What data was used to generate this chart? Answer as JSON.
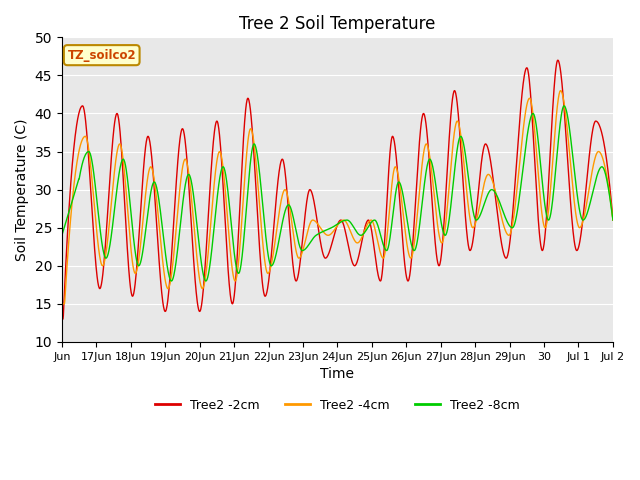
{
  "title": "Tree 2 Soil Temperature",
  "ylabel": "Soil Temperature (C)",
  "xlabel": "Time",
  "ylim": [
    10,
    50
  ],
  "annotation": "TZ_soilco2",
  "bg_color": "#e8e8e8",
  "line_colors": [
    "#dd0000",
    "#ff9900",
    "#00cc00"
  ],
  "line_labels": [
    "Tree2 -2cm",
    "Tree2 -4cm",
    "Tree2 -8cm"
  ],
  "xtick_labels": [
    "Jun",
    "17Jun",
    "18Jun",
    "19Jun",
    "20Jun",
    "21Jun",
    "22Jun",
    "23Jun",
    "24Jun",
    "25Jun",
    "26Jun",
    "27Jun",
    "28Jun",
    "29Jun",
    "30",
    "Jul 1",
    "Jul 2"
  ],
  "title_fontsize": 12,
  "label_fontsize": 10,
  "tick_fontsize": 8
}
